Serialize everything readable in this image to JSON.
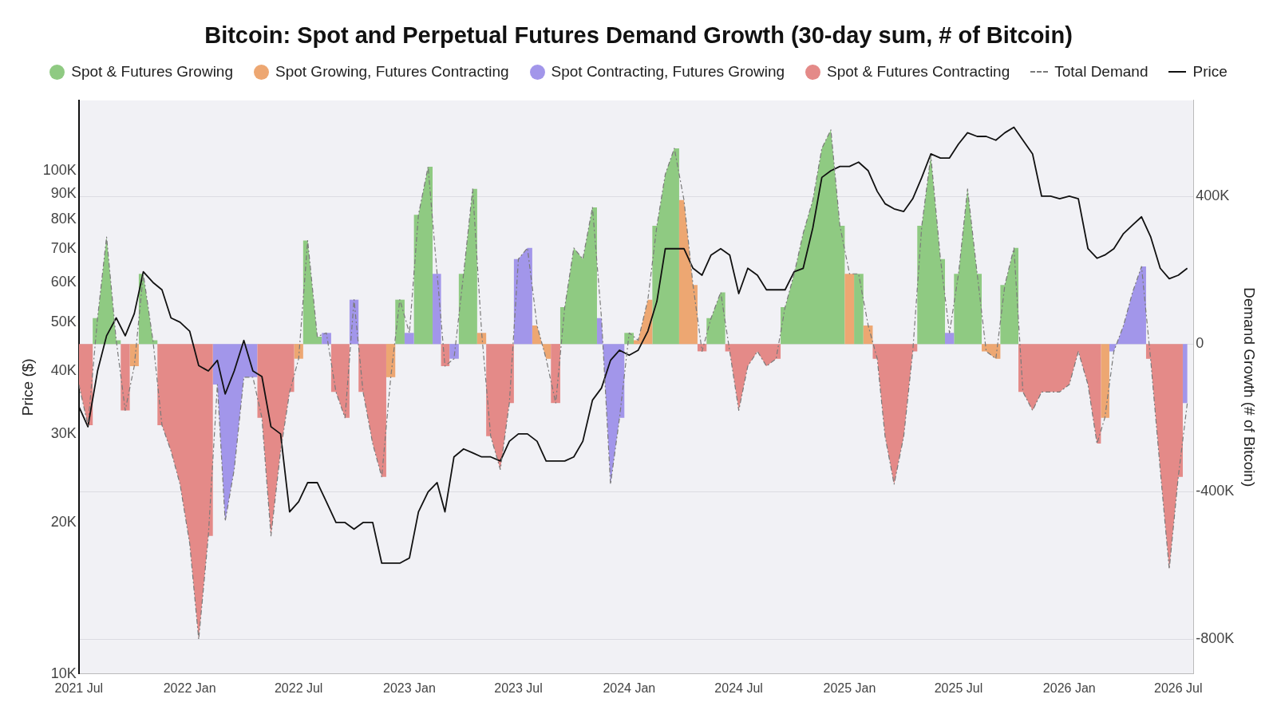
{
  "chart_data": {
    "type": "area",
    "title": "Bitcoin: Spot and Perpetual Futures Demand Growth (30-day sum, # of Bitcoin)",
    "ylabel": "Price ($)",
    "y2label": "Demand Growth (# of Bitcoin)",
    "legend": "top",
    "log": "y",
    "grid": "y",
    "marker": "none",
    "x": [
      "2021-07-01",
      "2021-07-16",
      "2021-08-01",
      "2021-08-16",
      "2021-09-01",
      "2021-09-16",
      "2021-10-01",
      "2021-10-16",
      "2021-11-01",
      "2021-11-16",
      "2021-12-01",
      "2021-12-16",
      "2022-01-01",
      "2022-01-16",
      "2022-02-01",
      "2022-02-16",
      "2022-03-01",
      "2022-03-16",
      "2022-04-01",
      "2022-04-16",
      "2022-05-01",
      "2022-05-16",
      "2022-06-01",
      "2022-06-16",
      "2022-07-01",
      "2022-07-16",
      "2022-08-01",
      "2022-08-16",
      "2022-09-01",
      "2022-09-16",
      "2022-10-01",
      "2022-10-16",
      "2022-11-01",
      "2022-11-16",
      "2022-12-01",
      "2022-12-16",
      "2023-01-01",
      "2023-01-16",
      "2023-02-01",
      "2023-02-16",
      "2023-03-01",
      "2023-03-16",
      "2023-04-01",
      "2023-04-16",
      "2023-05-01",
      "2023-05-16",
      "2023-06-01",
      "2023-06-16",
      "2023-07-01",
      "2023-07-16",
      "2023-08-01",
      "2023-08-16",
      "2023-09-01",
      "2023-09-16",
      "2023-10-01",
      "2023-10-16",
      "2023-11-01",
      "2023-11-16",
      "2023-12-01",
      "2023-12-16",
      "2024-01-01",
      "2024-01-16",
      "2024-02-01",
      "2024-02-16",
      "2024-03-01",
      "2024-03-16",
      "2024-04-01",
      "2024-04-16",
      "2024-05-01",
      "2024-05-16",
      "2024-06-01",
      "2024-06-16",
      "2024-07-01",
      "2024-07-16",
      "2024-08-01",
      "2024-08-16",
      "2024-09-01",
      "2024-09-16",
      "2024-10-01",
      "2024-10-16",
      "2024-11-01",
      "2024-11-16",
      "2024-12-01",
      "2024-12-16",
      "2025-01-01",
      "2025-01-16",
      "2025-02-01",
      "2025-02-16",
      "2025-03-01",
      "2025-03-16",
      "2025-04-01",
      "2025-04-16",
      "2025-05-01",
      "2025-05-16",
      "2025-06-01",
      "2025-06-16",
      "2025-07-01",
      "2025-07-16",
      "2025-08-01",
      "2025-08-16",
      "2025-09-01",
      "2025-09-16",
      "2025-10-01",
      "2025-10-16",
      "2025-11-01",
      "2025-11-16",
      "2025-12-01",
      "2025-12-16",
      "2026-01-01",
      "2026-01-16",
      "2026-02-01",
      "2026-02-16",
      "2026-03-01",
      "2026-03-16",
      "2026-04-01",
      "2026-04-16",
      "2026-05-01",
      "2026-05-16",
      "2026-06-01",
      "2026-06-16",
      "2026-07-01",
      "2026-07-16"
    ],
    "xlim": [
      "2021-07-01",
      "2026-07-26"
    ],
    "xticks": [
      {
        "value": "2021-07-01",
        "label": "2021 Jul"
      },
      {
        "value": "2022-01-01",
        "label": "2022 Jan"
      },
      {
        "value": "2022-07-01",
        "label": "2022 Jul"
      },
      {
        "value": "2023-01-01",
        "label": "2023 Jan"
      },
      {
        "value": "2023-07-01",
        "label": "2023 Jul"
      },
      {
        "value": "2024-01-01",
        "label": "2024 Jan"
      },
      {
        "value": "2024-07-01",
        "label": "2024 Jul"
      },
      {
        "value": "2025-01-01",
        "label": "2025 Jan"
      },
      {
        "value": "2025-07-01",
        "label": "2025 Jul"
      },
      {
        "value": "2026-01-01",
        "label": "2026 Jan"
      },
      {
        "value": "2026-07-01",
        "label": "2026 Jul"
      }
    ],
    "ylim": [
      10000,
      138000
    ],
    "yticks": [
      {
        "value": 10000,
        "label": "10K"
      },
      {
        "value": 20000,
        "label": "20K"
      },
      {
        "value": 30000,
        "label": "30K"
      },
      {
        "value": 40000,
        "label": "40K"
      },
      {
        "value": 50000,
        "label": "50K"
      },
      {
        "value": 60000,
        "label": "60K"
      },
      {
        "value": 70000,
        "label": "70K"
      },
      {
        "value": 80000,
        "label": "80K"
      },
      {
        "value": 90000,
        "label": "90K"
      },
      {
        "value": 100000,
        "label": "100K"
      }
    ],
    "y2lim": [
      -894000,
      660000
    ],
    "y2ticks": [
      {
        "value": -800000,
        "label": "-800K"
      },
      {
        "value": -400000,
        "label": "-400K"
      },
      0,
      {
        "value": 400000,
        "label": "400K"
      }
    ],
    "series": [
      {
        "name": "Spot & Futures Growing",
        "axis": "y2",
        "color": "#8fca82",
        "values": [
          null,
          null,
          70000,
          290000,
          10000,
          null,
          null,
          190000,
          10000,
          null,
          null,
          null,
          null,
          null,
          null,
          null,
          null,
          null,
          null,
          null,
          null,
          null,
          null,
          null,
          null,
          280000,
          20000,
          null,
          null,
          null,
          null,
          null,
          null,
          null,
          null,
          120000,
          null,
          350000,
          480000,
          null,
          null,
          null,
          190000,
          420000,
          null,
          null,
          null,
          null,
          null,
          null,
          null,
          null,
          null,
          100000,
          260000,
          230000,
          370000,
          null,
          null,
          null,
          30000,
          null,
          null,
          320000,
          460000,
          530000,
          null,
          null,
          null,
          70000,
          140000,
          null,
          null,
          null,
          null,
          null,
          null,
          100000,
          190000,
          300000,
          390000,
          530000,
          580000,
          320000,
          null,
          190000,
          null,
          null,
          null,
          null,
          null,
          null,
          320000,
          510000,
          230000,
          null,
          190000,
          420000,
          190000,
          null,
          null,
          160000,
          260000,
          null,
          null,
          null,
          null,
          null,
          null,
          null,
          null,
          null,
          null,
          null,
          null,
          null,
          null,
          null,
          null,
          null,
          null,
          null
        ]
      },
      {
        "name": "Spot Growing, Futures Contracting",
        "axis": "y2",
        "color": "#eda772",
        "values": [
          null,
          null,
          null,
          null,
          null,
          null,
          -60000,
          null,
          null,
          null,
          null,
          null,
          null,
          null,
          null,
          null,
          null,
          null,
          null,
          null,
          null,
          null,
          null,
          null,
          -40000,
          null,
          null,
          null,
          null,
          null,
          null,
          null,
          null,
          null,
          -90000,
          null,
          null,
          null,
          null,
          null,
          null,
          null,
          null,
          null,
          30000,
          null,
          null,
          null,
          null,
          null,
          50000,
          -40000,
          null,
          null,
          null,
          null,
          null,
          null,
          null,
          null,
          null,
          10000,
          120000,
          null,
          null,
          null,
          390000,
          160000,
          null,
          null,
          null,
          null,
          null,
          null,
          null,
          null,
          null,
          null,
          null,
          null,
          null,
          null,
          null,
          null,
          190000,
          null,
          50000,
          null,
          null,
          null,
          null,
          null,
          null,
          null,
          null,
          null,
          null,
          null,
          null,
          -20000,
          -40000,
          null,
          null,
          null,
          null,
          null,
          null,
          null,
          null,
          null,
          null,
          null,
          -200000,
          null,
          null,
          null,
          null,
          null,
          null,
          null,
          null,
          null
        ]
      },
      {
        "name": "Spot Contracting, Futures Growing",
        "axis": "y2",
        "color": "#a296ea",
        "values": [
          null,
          null,
          null,
          null,
          null,
          null,
          null,
          null,
          null,
          null,
          null,
          null,
          null,
          null,
          null,
          -110000,
          -480000,
          -340000,
          -90000,
          -90000,
          null,
          null,
          null,
          null,
          null,
          null,
          null,
          30000,
          null,
          null,
          120000,
          null,
          null,
          null,
          null,
          null,
          30000,
          null,
          null,
          190000,
          null,
          -40000,
          null,
          null,
          null,
          null,
          null,
          null,
          230000,
          260000,
          null,
          null,
          null,
          null,
          null,
          null,
          null,
          70000,
          -380000,
          -200000,
          null,
          null,
          null,
          null,
          null,
          null,
          null,
          null,
          null,
          null,
          null,
          null,
          null,
          null,
          null,
          null,
          null,
          null,
          null,
          null,
          null,
          null,
          null,
          null,
          null,
          null,
          null,
          null,
          null,
          null,
          null,
          null,
          null,
          null,
          null,
          30000,
          null,
          null,
          null,
          null,
          null,
          null,
          null,
          null,
          null,
          null,
          null,
          null,
          null,
          null,
          null,
          null,
          null,
          -20000,
          50000,
          140000,
          210000,
          null,
          null,
          null,
          null,
          -160000
        ]
      },
      {
        "name": "Spot & Futures Contracting",
        "axis": "y2",
        "color": "#e48a88",
        "values": [
          -110000,
          -220000,
          null,
          null,
          null,
          -180000,
          null,
          null,
          null,
          -220000,
          -290000,
          -380000,
          -540000,
          -800000,
          -520000,
          null,
          null,
          null,
          null,
          null,
          -200000,
          -520000,
          -290000,
          -130000,
          null,
          null,
          null,
          null,
          -130000,
          -200000,
          null,
          -130000,
          -270000,
          -360000,
          null,
          null,
          null,
          null,
          null,
          null,
          -60000,
          null,
          null,
          null,
          null,
          -250000,
          -340000,
          -160000,
          null,
          null,
          null,
          null,
          -160000,
          null,
          null,
          null,
          null,
          null,
          null,
          null,
          null,
          null,
          null,
          null,
          null,
          null,
          null,
          null,
          -20000,
          null,
          null,
          -20000,
          -180000,
          -60000,
          -20000,
          -60000,
          -40000,
          null,
          null,
          null,
          null,
          null,
          null,
          null,
          null,
          null,
          null,
          -40000,
          -250000,
          -380000,
          -250000,
          -20000,
          null,
          null,
          null,
          null,
          null,
          null,
          null,
          null,
          null,
          null,
          null,
          -130000,
          -180000,
          -130000,
          -130000,
          -130000,
          -110000,
          -20000,
          -110000,
          -270000,
          null,
          null,
          null,
          null,
          null,
          -40000,
          -340000,
          -610000,
          -360000,
          null
        ]
      },
      {
        "name": "Total Demand",
        "type": "line",
        "axis": "y2",
        "color": "#7a7a7a",
        "line_style": "dashed",
        "values": [
          -110000,
          -220000,
          70000,
          290000,
          10000,
          -180000,
          -60000,
          190000,
          10000,
          -220000,
          -290000,
          -380000,
          -540000,
          -800000,
          -520000,
          -110000,
          -480000,
          -340000,
          -90000,
          -90000,
          -200000,
          -520000,
          -290000,
          -130000,
          -40000,
          280000,
          20000,
          30000,
          -130000,
          -200000,
          120000,
          -130000,
          -270000,
          -360000,
          -90000,
          120000,
          30000,
          350000,
          480000,
          190000,
          -60000,
          -40000,
          190000,
          420000,
          30000,
          -250000,
          -340000,
          -160000,
          230000,
          260000,
          50000,
          -40000,
          -160000,
          100000,
          260000,
          230000,
          370000,
          70000,
          -380000,
          -200000,
          30000,
          10000,
          120000,
          320000,
          460000,
          530000,
          390000,
          160000,
          -20000,
          70000,
          140000,
          -20000,
          -180000,
          -60000,
          -20000,
          -60000,
          -40000,
          100000,
          190000,
          300000,
          390000,
          530000,
          580000,
          320000,
          190000,
          190000,
          50000,
          -40000,
          -250000,
          -380000,
          -250000,
          -20000,
          320000,
          510000,
          230000,
          30000,
          190000,
          420000,
          190000,
          -20000,
          -40000,
          160000,
          260000,
          -130000,
          -180000,
          -130000,
          -130000,
          -130000,
          -110000,
          -20000,
          -110000,
          -270000,
          -200000,
          -20000,
          50000,
          140000,
          210000,
          -40000,
          -340000,
          -610000,
          -360000,
          -160000
        ]
      },
      {
        "name": "Price",
        "type": "line",
        "axis": "y",
        "color": "#111111",
        "line_style": "solid",
        "values": [
          34000,
          31000,
          40000,
          47000,
          51000,
          47000,
          52000,
          63000,
          60000,
          58000,
          51000,
          50000,
          48000,
          41000,
          40000,
          42000,
          36000,
          40000,
          46000,
          40000,
          39000,
          31000,
          30000,
          21000,
          22000,
          24000,
          24000,
          22000,
          20000,
          20000,
          19400,
          20000,
          20000,
          16600,
          16600,
          16600,
          17000,
          21000,
          23000,
          24000,
          21000,
          27000,
          28000,
          27500,
          27000,
          27000,
          26500,
          29000,
          30000,
          30000,
          29000,
          26500,
          26500,
          26500,
          27000,
          29000,
          35000,
          37000,
          42000,
          44000,
          43000,
          44000,
          48000,
          55000,
          70000,
          70000,
          70000,
          64000,
          62000,
          68000,
          70000,
          68000,
          57000,
          64000,
          62000,
          58000,
          58000,
          58000,
          63000,
          64000,
          77000,
          97000,
          100000,
          102000,
          102000,
          104000,
          100000,
          91000,
          86000,
          84000,
          83000,
          88000,
          97000,
          108000,
          106000,
          106000,
          113000,
          119000,
          117000,
          117000,
          115000,
          119000,
          122000,
          115000,
          108000,
          89000,
          89000,
          88000,
          89000,
          88000,
          70000,
          67000,
          68000,
          70000,
          75000,
          78000,
          81000,
          74000,
          64000,
          61000,
          62000,
          64000
        ]
      }
    ]
  }
}
